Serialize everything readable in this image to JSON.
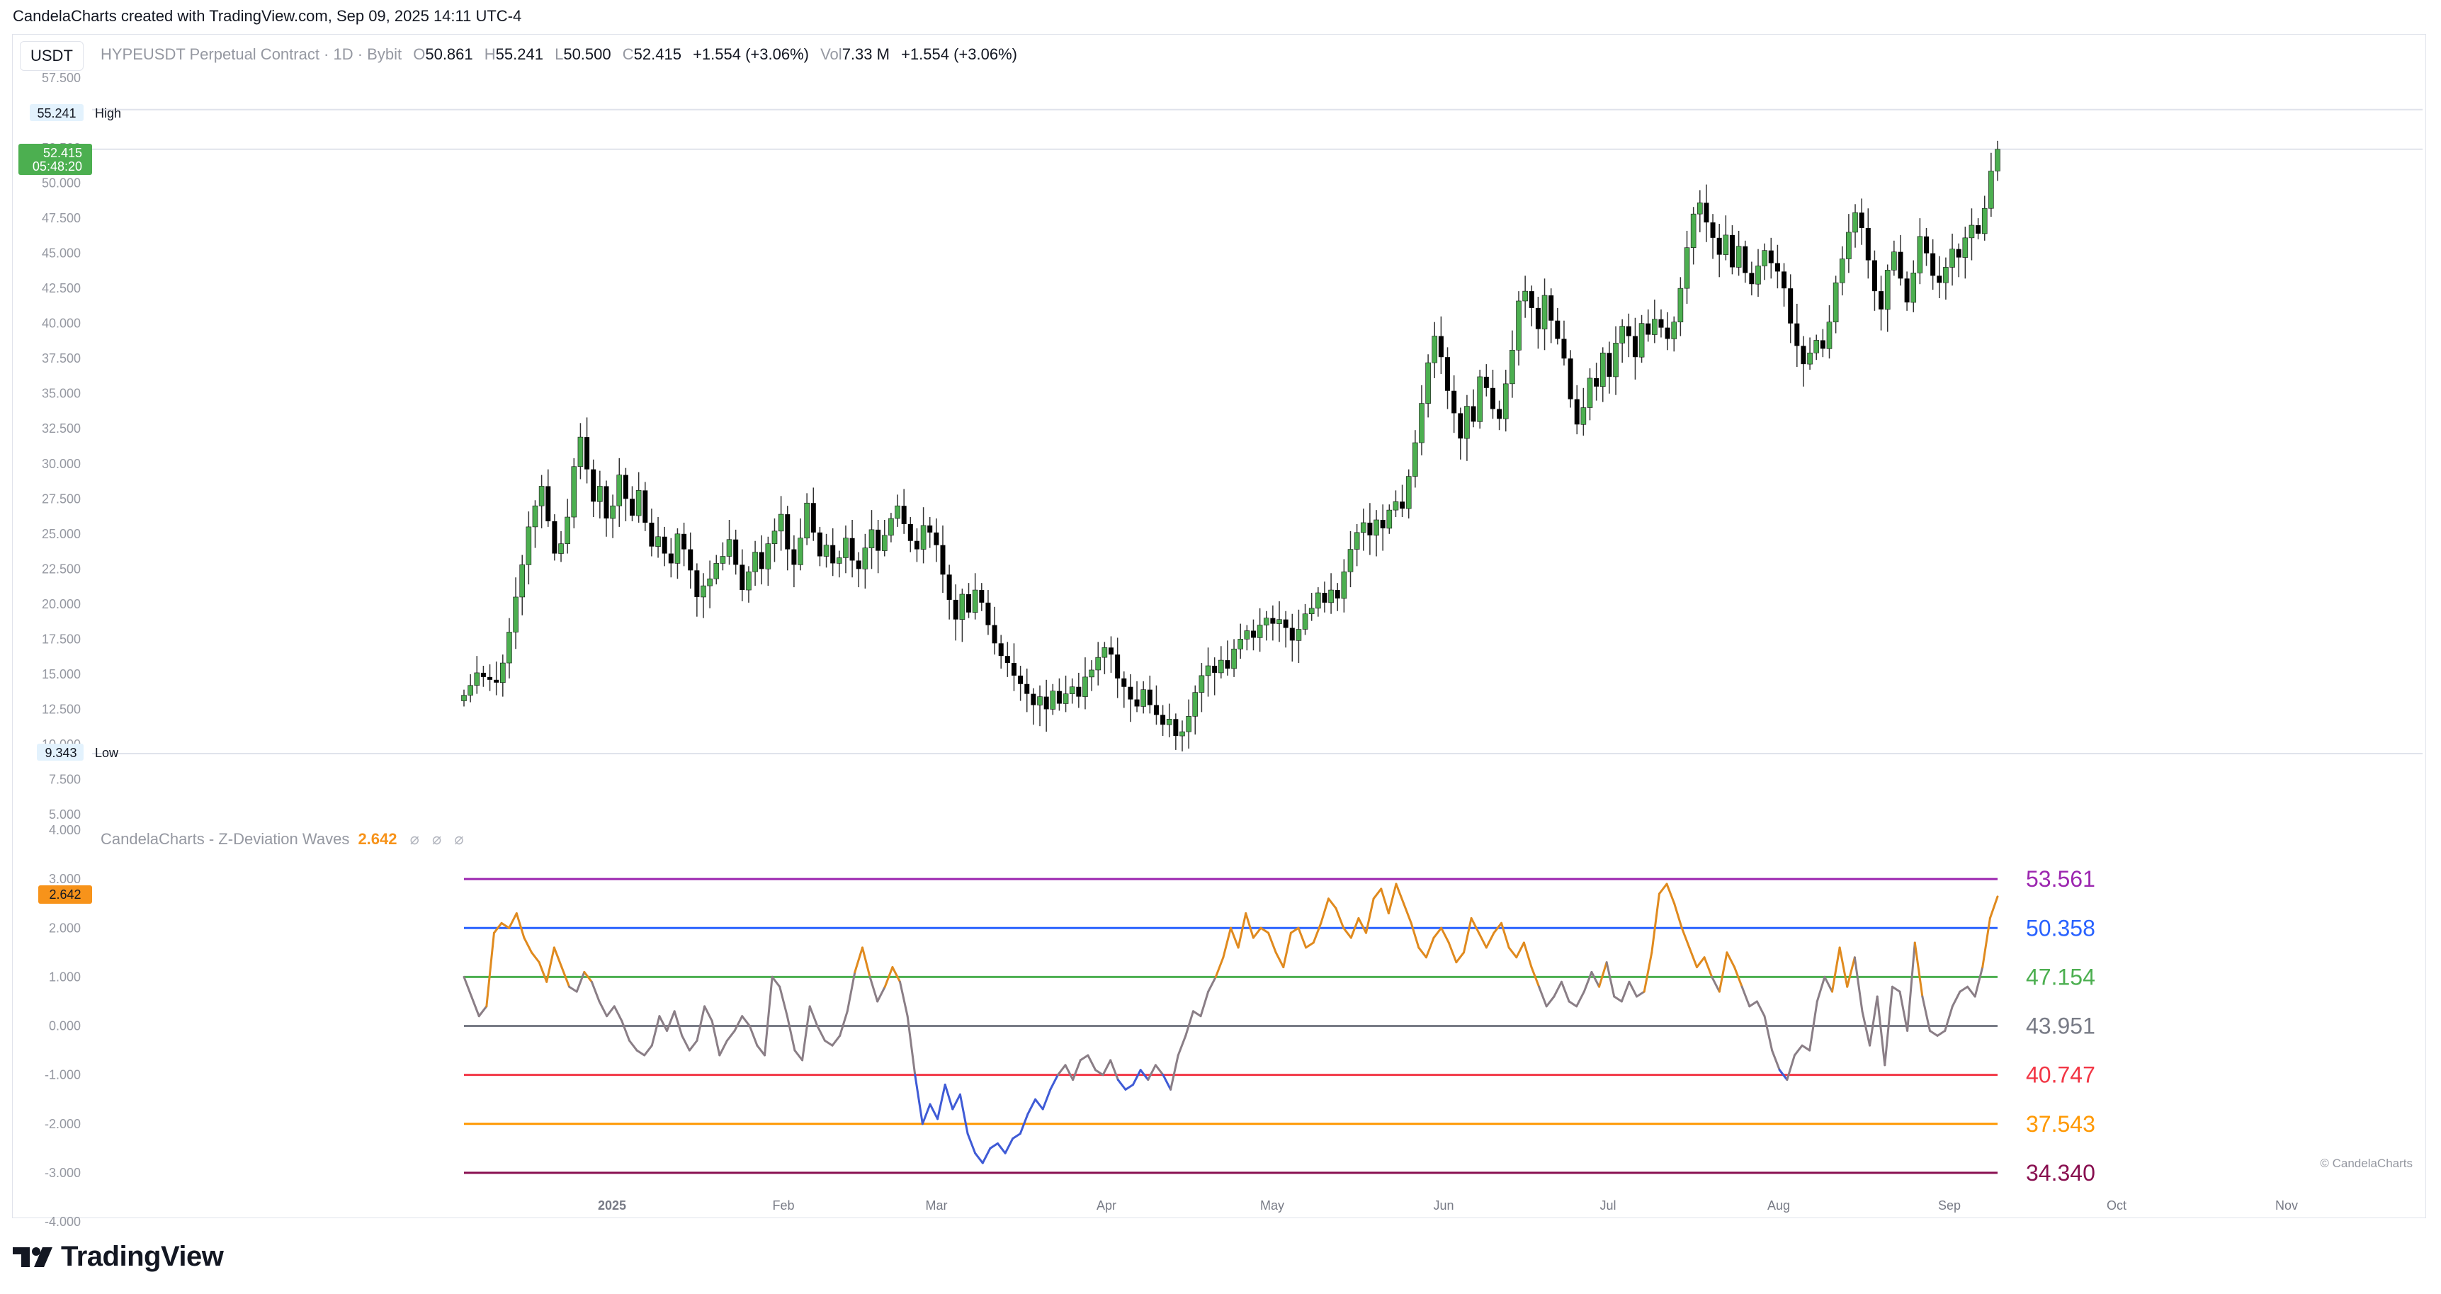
{
  "header": {
    "attribution": "CandelaCharts created with TradingView.com, Sep 09, 2025 14:11 UTC-4"
  },
  "toolbar": {
    "currency": "USDT"
  },
  "legend": {
    "symbol": "HYPEUSDT Perpetual Contract · 1D · Bybit",
    "o_label": "O",
    "o": "50.861",
    "h_label": "H",
    "h": "55.241",
    "l_label": "L",
    "l": "50.500",
    "c_label": "C",
    "c": "52.415",
    "change": "+1.554 (+3.06%)",
    "vol_label": "Vol",
    "vol": "7.33 M",
    "vol_change": "+1.554 (+3.06%)"
  },
  "price_badges": {
    "high_value": "55.241",
    "high_label": "High",
    "last_value": "52.415",
    "last_time": "05:48:20",
    "low_value": "9.343",
    "low_label": "Low"
  },
  "indicator": {
    "name": "CandelaCharts - Z-Deviation Waves",
    "value": "2.642",
    "marks": [
      "⌀",
      "⌀",
      "⌀"
    ],
    "badge": "2.642"
  },
  "watermark": "© CandelaCharts",
  "footer": {
    "brand": "TradingView"
  },
  "colors": {
    "up": "#4caf50",
    "down": "#000000",
    "accent": "#f7931a"
  },
  "chart_data": [
    {
      "type": "candlestick",
      "title": "HYPEUSDT Perpetual Contract · 1D · Bybit",
      "ylim": [
        5,
        57.5
      ],
      "yticks": [
        "57.500",
        "55.000",
        "52.500",
        "50.000",
        "47.500",
        "45.000",
        "42.500",
        "40.000",
        "37.500",
        "35.000",
        "32.500",
        "30.000",
        "27.500",
        "25.000",
        "22.500",
        "20.000",
        "17.500",
        "15.000",
        "12.500",
        "10.000",
        "7.500",
        "5.000"
      ],
      "x_labels": [
        "2025",
        "Feb",
        "Mar",
        "Apr",
        "May",
        "Jun",
        "Jul",
        "Aug",
        "Sep",
        "Oct",
        "Nov"
      ],
      "reference_lines": [
        {
          "label": "High",
          "value": 55.241
        },
        {
          "label": "Low",
          "value": 9.343
        }
      ],
      "last_price": 52.415,
      "closes": [
        13.5,
        14.2,
        15.1,
        14.8,
        14.6,
        14.4,
        15.8,
        18.0,
        20.5,
        22.8,
        25.5,
        27.0,
        28.4,
        25.9,
        23.6,
        24.3,
        26.2,
        29.8,
        31.9,
        29.6,
        27.3,
        28.4,
        26.1,
        27.0,
        29.2,
        27.5,
        26.3,
        28.1,
        25.8,
        24.1,
        24.8,
        23.6,
        22.9,
        25.0,
        23.9,
        22.4,
        20.5,
        21.3,
        21.8,
        22.9,
        23.4,
        24.6,
        22.8,
        21.0,
        22.3,
        23.7,
        22.5,
        24.3,
        25.2,
        26.4,
        23.9,
        22.8,
        24.7,
        27.2,
        25.1,
        23.4,
        24.2,
        22.9,
        23.3,
        24.7,
        23.1,
        22.5,
        24.0,
        25.3,
        23.8,
        24.9,
        26.1,
        27.0,
        25.7,
        24.5,
        23.9,
        25.6,
        25.1,
        24.2,
        22.1,
        20.3,
        18.9,
        20.7,
        19.4,
        21.0,
        20.1,
        18.5,
        17.2,
        16.3,
        15.8,
        14.9,
        14.3,
        13.6,
        12.8,
        13.4,
        12.5,
        13.8,
        12.9,
        13.6,
        14.1,
        13.4,
        14.8,
        15.3,
        16.2,
        16.9,
        16.4,
        14.7,
        14.1,
        13.2,
        12.7,
        13.9,
        12.8,
        12.1,
        11.4,
        11.8,
        10.6,
        10.9,
        12.0,
        13.7,
        14.9,
        15.6,
        15.1,
        16.0,
        15.4,
        16.8,
        17.5,
        18.1,
        17.6,
        18.5,
        19.0,
        18.6,
        18.9,
        18.3,
        17.4,
        18.2,
        19.3,
        19.7,
        20.8,
        20.1,
        21.0,
        20.4,
        22.3,
        23.9,
        25.1,
        25.8,
        24.9,
        26.0,
        25.4,
        26.7,
        27.3,
        26.8,
        29.1,
        31.5,
        34.3,
        37.2,
        39.1,
        37.6,
        35.2,
        33.6,
        31.8,
        34.1,
        33.0,
        36.2,
        35.4,
        33.9,
        33.2,
        35.7,
        38.1,
        41.6,
        42.3,
        41.1,
        39.6,
        42.0,
        40.2,
        38.9,
        37.5,
        34.6,
        32.8,
        34.0,
        36.1,
        35.5,
        37.9,
        36.2,
        38.6,
        39.8,
        39.1,
        37.6,
        40.0,
        39.2,
        40.3,
        39.7,
        38.9,
        40.1,
        42.5,
        45.4,
        47.8,
        48.6,
        47.2,
        46.1,
        44.9,
        46.3,
        44.0,
        45.5,
        43.6,
        42.8,
        44.1,
        45.2,
        44.3,
        43.7,
        42.5,
        40.0,
        38.4,
        37.1,
        37.9,
        38.8,
        38.2,
        40.1,
        42.9,
        44.6,
        46.5,
        47.9,
        46.8,
        44.5,
        42.3,
        41.0,
        43.8,
        45.1,
        43.2,
        41.5,
        43.6,
        46.2,
        45.0,
        43.4,
        42.9,
        44.0,
        45.3,
        44.7,
        46.1,
        47.0,
        46.4,
        48.2,
        50.861,
        52.415
      ],
      "dev_levels": [
        {
          "label": "53.561",
          "value": 3,
          "color": "#9c27b0"
        },
        {
          "label": "50.358",
          "value": 2,
          "color": "#2962ff"
        },
        {
          "label": "47.154",
          "value": 1,
          "color": "#4caf50"
        },
        {
          "label": "43.951",
          "value": 0,
          "color": "#787b86"
        },
        {
          "label": "40.747",
          "value": -1,
          "color": "#f23645"
        },
        {
          "label": "37.543",
          "value": -2,
          "color": "#ff9800"
        },
        {
          "label": "34.340",
          "value": -3,
          "color": "#880e4f"
        }
      ]
    },
    {
      "type": "line",
      "title": "CandelaCharts - Z-Deviation Waves",
      "ylim": [
        -4,
        4
      ],
      "yticks": [
        "4.000",
        "3.000",
        "2.000",
        "1.000",
        "0.000",
        "-1.000",
        "-2.000",
        "-3.000",
        "-4.000"
      ],
      "values": [
        1.0,
        0.6,
        0.2,
        0.4,
        1.9,
        2.1,
        2.0,
        2.3,
        1.8,
        1.5,
        1.3,
        0.9,
        1.6,
        1.2,
        0.8,
        0.7,
        1.1,
        0.9,
        0.5,
        0.2,
        0.4,
        0.1,
        -0.3,
        -0.5,
        -0.6,
        -0.4,
        0.2,
        -0.1,
        0.3,
        -0.2,
        -0.5,
        -0.3,
        0.4,
        0.1,
        -0.6,
        -0.3,
        -0.1,
        0.2,
        0.0,
        -0.4,
        -0.6,
        1.0,
        0.8,
        0.2,
        -0.5,
        -0.7,
        0.4,
        0.0,
        -0.3,
        -0.4,
        -0.2,
        0.3,
        1.1,
        1.6,
        1.0,
        0.5,
        0.8,
        1.2,
        0.9,
        0.2,
        -1.0,
        -2.0,
        -1.6,
        -1.9,
        -1.2,
        -1.7,
        -1.4,
        -2.2,
        -2.6,
        -2.8,
        -2.5,
        -2.4,
        -2.6,
        -2.3,
        -2.2,
        -1.8,
        -1.5,
        -1.7,
        -1.3,
        -1.0,
        -0.8,
        -1.1,
        -0.7,
        -0.6,
        -0.9,
        -1.0,
        -0.7,
        -1.1,
        -1.3,
        -1.2,
        -0.9,
        -1.1,
        -0.8,
        -1.0,
        -1.3,
        -0.6,
        -0.2,
        0.3,
        0.2,
        0.7,
        1.0,
        1.4,
        2.0,
        1.6,
        2.3,
        1.8,
        2.0,
        1.9,
        1.5,
        1.2,
        1.9,
        2.0,
        1.6,
        1.7,
        2.1,
        2.6,
        2.4,
        2.0,
        1.8,
        2.2,
        1.9,
        2.6,
        2.8,
        2.3,
        2.9,
        2.5,
        2.1,
        1.6,
        1.4,
        1.8,
        2.0,
        1.7,
        1.3,
        1.5,
        2.2,
        1.9,
        1.6,
        1.9,
        2.1,
        1.6,
        1.4,
        1.7,
        1.2,
        0.8,
        0.4,
        0.6,
        0.9,
        0.5,
        0.4,
        0.7,
        1.1,
        0.8,
        1.3,
        0.6,
        0.5,
        0.9,
        0.6,
        0.7,
        1.5,
        2.7,
        2.9,
        2.5,
        2.0,
        1.6,
        1.2,
        1.4,
        1.0,
        0.7,
        1.5,
        1.2,
        0.8,
        0.4,
        0.5,
        0.2,
        -0.5,
        -0.9,
        -1.1,
        -0.6,
        -0.4,
        -0.5,
        0.5,
        1.0,
        0.7,
        1.6,
        0.8,
        1.4,
        0.3,
        -0.4,
        0.6,
        -0.8,
        0.8,
        0.7,
        -0.1,
        1.7,
        0.6,
        -0.1,
        -0.2,
        -0.1,
        0.4,
        0.7,
        0.8,
        0.6,
        1.2,
        2.2,
        2.642
      ]
    }
  ]
}
